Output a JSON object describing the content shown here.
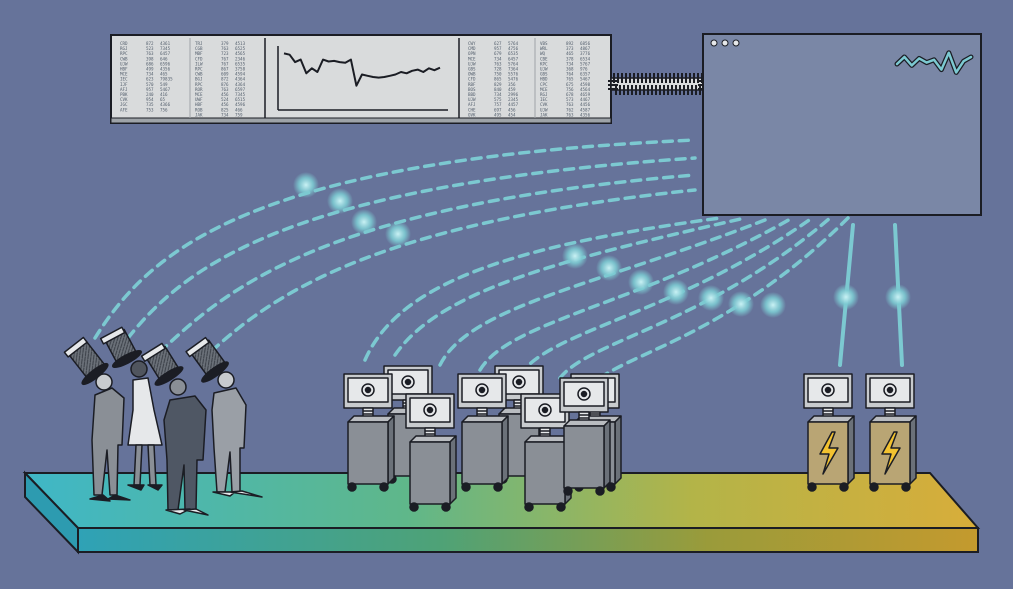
{
  "scene": {
    "background": "#66739a",
    "platform_gradient": [
      "#3fb7c7",
      "#5fb78a",
      "#b3b448",
      "#d8ad3a"
    ],
    "stream_color": "#7cc9d1",
    "ink": "#1b1d24"
  },
  "ticker_board": {
    "icon": "stock-ticker-board",
    "columns": [
      [
        [
          "CRD",
          "872",
          "4361"
        ],
        [
          "RGJ",
          "523",
          "7345"
        ],
        [
          "RPC",
          "763",
          "6457"
        ],
        [
          "CWB",
          "398",
          "646"
        ],
        [
          "UJW",
          "686",
          "6596"
        ],
        [
          "HBF",
          "499",
          "4356"
        ],
        [
          "MCE",
          "734",
          "465"
        ],
        [
          "IEC",
          "623",
          "79835"
        ],
        [
          "IJF",
          "570",
          "549"
        ],
        [
          "AFJ",
          "957",
          "5467"
        ],
        [
          "PBK",
          "240",
          "416"
        ],
        [
          "CVK",
          "954",
          "65"
        ],
        [
          "JGC",
          "735",
          "4366"
        ],
        [
          "AFE",
          "753",
          "756"
        ]
      ],
      [
        [
          "TRJ",
          "379",
          "4513"
        ],
        [
          "CGB",
          "763",
          "6525"
        ],
        [
          "MBF",
          "723",
          "4565"
        ],
        [
          "CFD",
          "767",
          "2346"
        ],
        [
          "ILW",
          "767",
          "6535"
        ],
        [
          "RPC",
          "867",
          "3758"
        ],
        [
          "CWB",
          "609",
          "4594"
        ],
        [
          "BGJ",
          "872",
          "4364"
        ],
        [
          "RPC",
          "876",
          "4364"
        ],
        [
          "ROR",
          "763",
          "6597"
        ],
        [
          "MCE",
          "456",
          "7345"
        ],
        [
          "UWF",
          "524",
          "6515"
        ],
        [
          "HBF",
          "456",
          "4596"
        ],
        [
          "ROB",
          "825",
          "466"
        ],
        [
          "JAK",
          "734",
          "759"
        ]
      ],
      [
        [
          "CWY",
          "627",
          "5764"
        ],
        [
          "CMD",
          "957",
          "4756"
        ],
        [
          "OPN",
          "679",
          "6535"
        ],
        [
          "MCE",
          "734",
          "6457"
        ],
        [
          "UJW",
          "763",
          "5764"
        ],
        [
          "GBS",
          "728",
          "7364"
        ],
        [
          "OWB",
          "750",
          "5576"
        ],
        [
          "CFD",
          "865",
          "5476"
        ],
        [
          "RBF",
          "829",
          "356"
        ],
        [
          "BOS",
          "840",
          "459"
        ],
        [
          "BBD",
          "734",
          "2996"
        ],
        [
          "UJW",
          "575",
          "2345"
        ],
        [
          "AFJ",
          "757",
          "4457"
        ],
        [
          "CHE",
          "697",
          "456"
        ],
        [
          "OVK",
          "495",
          "454"
        ]
      ],
      [
        [
          "VBS",
          "892",
          "6856"
        ],
        [
          "WRL",
          "373",
          "4867"
        ],
        [
          "WQ",
          "465",
          "3776"
        ],
        [
          "CBE",
          "378",
          "6534"
        ],
        [
          "KPC",
          "734",
          "5767"
        ],
        [
          "UJW",
          "368",
          "976"
        ],
        [
          "GBS",
          "764",
          "6357"
        ],
        [
          "HBD",
          "765",
          "5467"
        ],
        [
          "CPC",
          "675",
          "4598"
        ],
        [
          "MCE",
          "756",
          "4564"
        ],
        [
          "RGJ",
          "678",
          "4659"
        ],
        [
          "IEC",
          "573",
          "4467"
        ],
        [
          "CVK",
          "763",
          "4456"
        ],
        [
          "UJW",
          "762",
          "4587"
        ],
        [
          "JAK",
          "763",
          "4356"
        ]
      ]
    ],
    "chart_data": {
      "type": "line",
      "title": "",
      "xlabel": "",
      "ylabel": "",
      "series": [
        {
          "values": [
            88,
            86,
            74,
            78,
            56,
            64,
            58,
            78,
            75,
            76,
            74,
            73,
            78,
            36,
            54,
            52,
            50,
            49,
            50,
            52,
            54,
            58,
            56,
            60,
            62,
            58,
            64,
            61,
            65
          ]
        }
      ]
    }
  },
  "monitor": {
    "icon": "browser-window",
    "controls": [
      "dot",
      "dot",
      "dot"
    ],
    "sparkline": [
      20,
      30,
      18,
      28,
      22,
      26,
      12,
      36,
      8,
      24,
      30
    ]
  },
  "crowd": {
    "people_count": 4,
    "hat": "striped-top-hat"
  },
  "robots": {
    "idle_count": 8,
    "power_count": 2,
    "power_icon": "lightning-bolt"
  }
}
